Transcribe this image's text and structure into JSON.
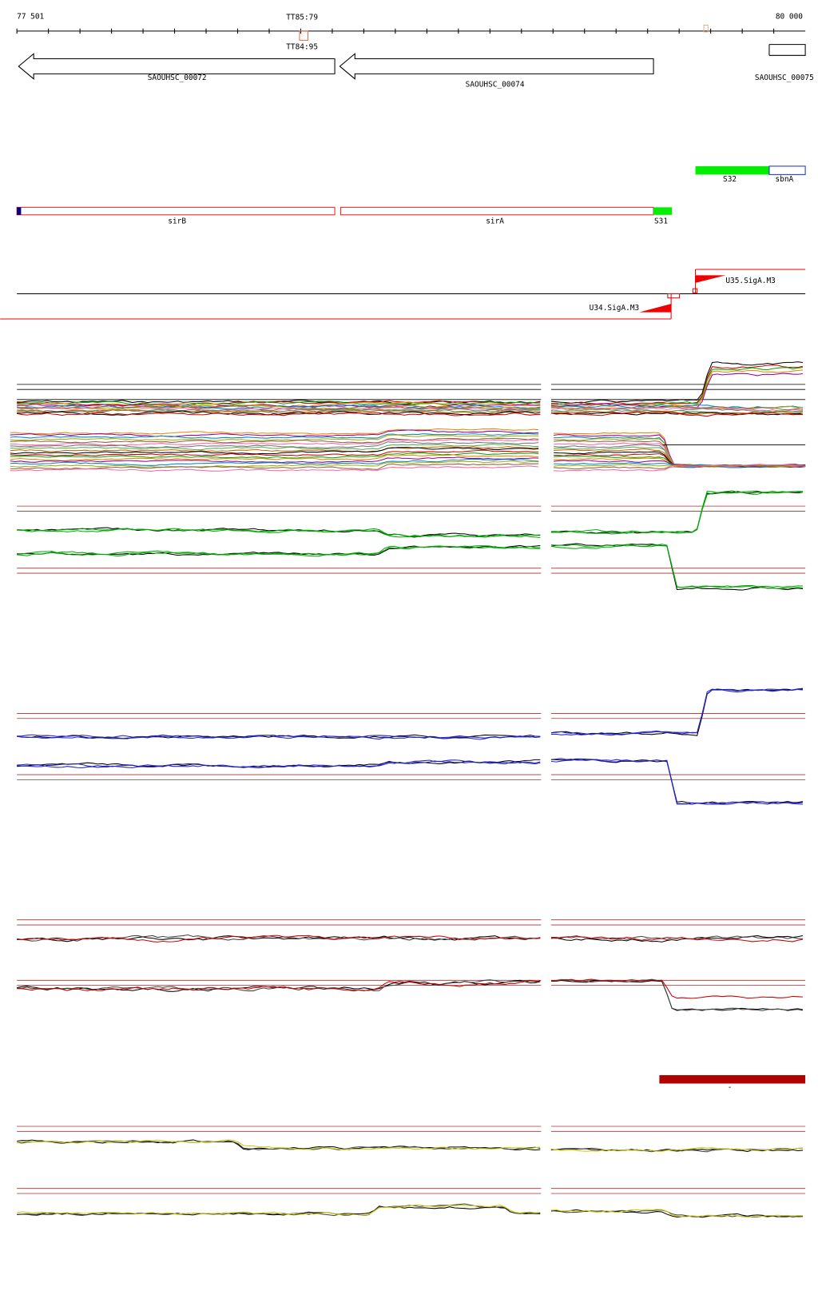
{
  "ruler": {
    "start": "77 501",
    "end": "80 000",
    "markers": [
      "TT85:79",
      "TT84:95"
    ]
  },
  "genes": [
    "SAOUHSC_00072",
    "SAOUHSC_00074",
    "SAOUHSC_00075"
  ],
  "features": [
    "S32",
    "sbnA",
    "sirB",
    "sirA",
    "S31"
  ],
  "promoters": [
    "U35.SigA.M3",
    "U34.SigA.M3"
  ],
  "segment_label": "-"
}
